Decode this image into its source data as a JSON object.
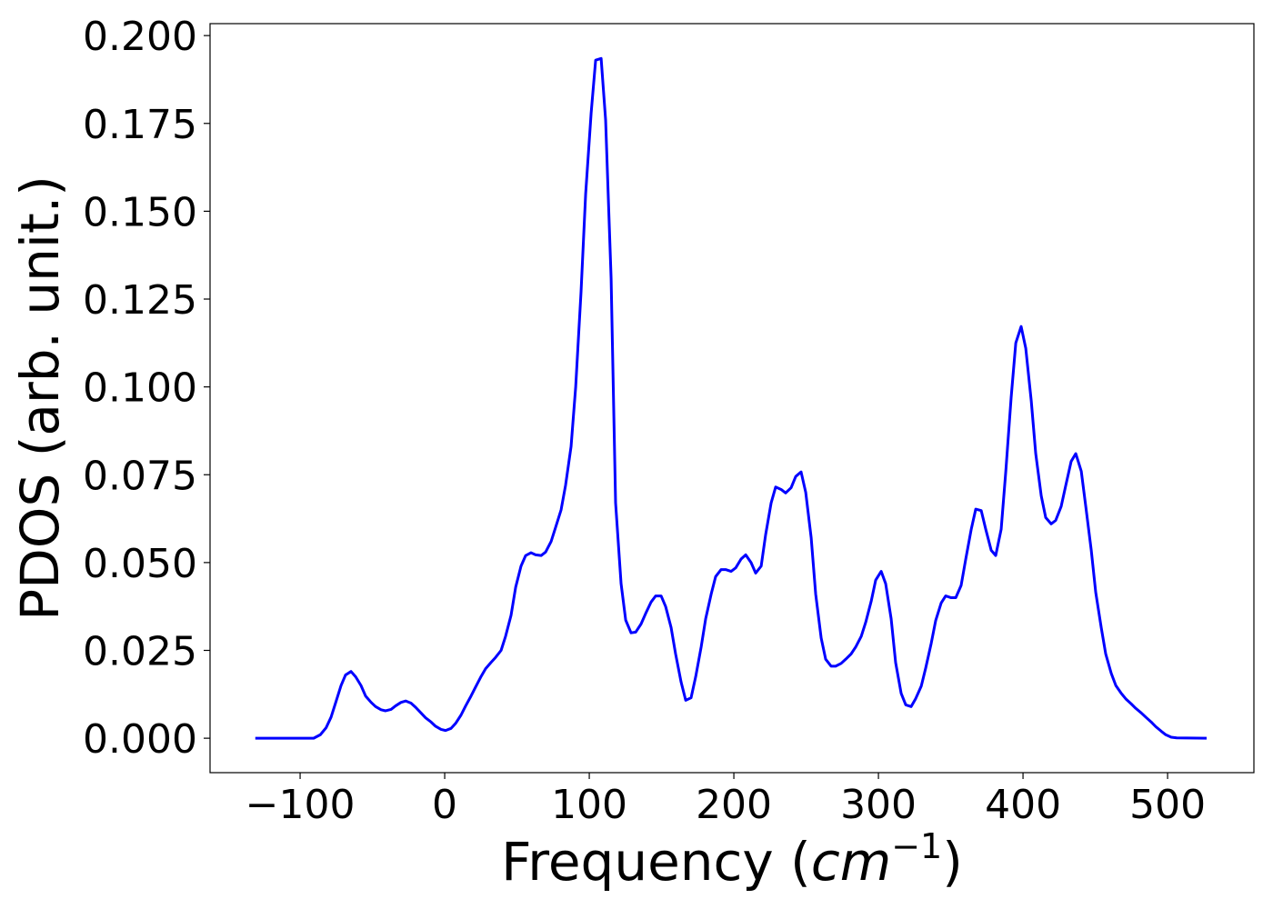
{
  "chart_data": {
    "type": "line",
    "xlabel": [
      "Frequency (",
      "cm",
      "−1",
      ")"
    ],
    "ylabel": "PDOS (arb. unit.)",
    "x": [
      -131,
      -90.6,
      -86,
      -82,
      -78.6,
      -75.5,
      -71.7,
      -68.6,
      -64.8,
      -61.6,
      -57.9,
      -54.7,
      -50.9,
      -47.8,
      -44,
      -40.9,
      -37.1,
      -34,
      -30.2,
      -27,
      -23.3,
      -20.1,
      -16.4,
      -13.2,
      -9.4,
      -6.3,
      -2.5,
      0.6,
      4.4,
      7.5,
      11.3,
      14.5,
      18.2,
      21.4,
      25.2,
      28.3,
      32.1,
      35.2,
      39,
      42.1,
      45.9,
      49.1,
      52.8,
      56,
      59.7,
      62.9,
      66.7,
      69.8,
      73.6,
      76.7,
      80.5,
      83.6,
      87.4,
      90.6,
      94.3,
      97.5,
      101.3,
      104.4,
      108.2,
      111.3,
      115.1,
      118.2,
      122,
      125.2,
      128.9,
      132.1,
      135.8,
      139,
      142.8,
      145.9,
      149.7,
      152.8,
      156.6,
      159.7,
      163.5,
      166.7,
      170.4,
      173.6,
      177.4,
      180.5,
      184.3,
      187.4,
      191.2,
      194.3,
      198.1,
      201.3,
      205,
      208.2,
      211.9,
      215.1,
      218.9,
      222,
      225.8,
      228.9,
      232.7,
      235.8,
      239.6,
      242.8,
      246.5,
      249.7,
      253.5,
      256.6,
      260.4,
      263.5,
      267.3,
      270.4,
      274.2,
      277.4,
      281.1,
      284.3,
      288.1,
      291.2,
      295,
      298.1,
      301.9,
      305,
      308.8,
      311.9,
      315.7,
      318.9,
      322.6,
      325.8,
      329.6,
      332.7,
      336.5,
      339.6,
      343.4,
      346.5,
      350.3,
      353.5,
      357.2,
      360.4,
      364.2,
      367.3,
      371.1,
      374.2,
      378,
      381.1,
      384.9,
      388.1,
      391.8,
      395,
      398.7,
      401.9,
      405.7,
      408.8,
      412.6,
      415.7,
      419.5,
      422.6,
      426.4,
      429.6,
      433.3,
      436.5,
      440.3,
      443.4,
      447.2,
      450.3,
      454.1,
      457.2,
      461,
      464.2,
      467.9,
      471.1,
      474.8,
      478,
      481.8,
      484.9,
      488.7,
      491.8,
      495.6,
      498.7,
      502.5,
      506.3,
      527
    ],
    "series": [
      {
        "name": "PDOS",
        "color": "#0000ff",
        "values": [
          0,
          0,
          0.001,
          0.003,
          0.006,
          0.01,
          0.015,
          0.018,
          0.019,
          0.0175,
          0.015,
          0.012,
          0.0102,
          0.009,
          0.0081,
          0.0078,
          0.0082,
          0.0092,
          0.0102,
          0.0106,
          0.01,
          0.0088,
          0.0072,
          0.0058,
          0.0046,
          0.0034,
          0.0025,
          0.0022,
          0.0028,
          0.0042,
          0.0066,
          0.0092,
          0.012,
          0.0146,
          0.0176,
          0.0198,
          0.0216,
          0.023,
          0.025,
          0.029,
          0.035,
          0.043,
          0.049,
          0.052,
          0.0528,
          0.0522,
          0.052,
          0.053,
          0.056,
          0.06,
          0.065,
          0.072,
          0.083,
          0.1,
          0.127,
          0.155,
          0.178,
          0.193,
          0.1935,
          0.176,
          0.131,
          0.067,
          0.044,
          0.0336,
          0.03,
          0.0302,
          0.0325,
          0.0355,
          0.0388,
          0.0405,
          0.0405,
          0.0375,
          0.0315,
          0.024,
          0.016,
          0.0108,
          0.0115,
          0.0175,
          0.026,
          0.034,
          0.041,
          0.046,
          0.048,
          0.048,
          0.0475,
          0.0485,
          0.051,
          0.0522,
          0.05,
          0.047,
          0.049,
          0.058,
          0.067,
          0.0715,
          0.0708,
          0.0698,
          0.0713,
          0.0745,
          0.0758,
          0.07,
          0.057,
          0.041,
          0.0285,
          0.0225,
          0.0205,
          0.0205,
          0.0213,
          0.0225,
          0.024,
          0.026,
          0.029,
          0.033,
          0.039,
          0.045,
          0.0475,
          0.044,
          0.034,
          0.0215,
          0.0128,
          0.0095,
          0.009,
          0.0113,
          0.0148,
          0.02,
          0.027,
          0.0335,
          0.0385,
          0.0405,
          0.04,
          0.04,
          0.0435,
          0.051,
          0.0595,
          0.0652,
          0.0648,
          0.0595,
          0.0535,
          0.052,
          0.0595,
          0.076,
          0.097,
          0.1125,
          0.1172,
          0.111,
          0.096,
          0.081,
          0.069,
          0.0628,
          0.061,
          0.062,
          0.066,
          0.072,
          0.0788,
          0.081,
          0.076,
          0.066,
          0.0535,
          0.0415,
          0.0315,
          0.024,
          0.0185,
          0.015,
          0.0128,
          0.0112,
          0.0098,
          0.0085,
          0.0072,
          0.006,
          0.0046,
          0.0033,
          0.002,
          0.001,
          0.0003,
          0.0001,
          0
        ]
      }
    ],
    "xlim": [
      -162.3,
      559.7
    ],
    "ylim": [
      -0.0098,
      0.2034
    ],
    "xticks": [
      {
        "value": -100,
        "label": "−100"
      },
      0,
      100,
      200,
      300,
      400,
      500
    ],
    "yticks": [
      {
        "value": 0,
        "label": "0.000"
      },
      {
        "value": 0.025,
        "label": "0.025"
      },
      {
        "value": 0.05,
        "label": "0.050"
      },
      {
        "value": 0.075,
        "label": "0.075"
      },
      {
        "value": 0.1,
        "label": "0.100"
      },
      {
        "value": 0.125,
        "label": "0.125"
      },
      {
        "value": 0.15,
        "label": "0.150"
      },
      {
        "value": 0.175,
        "label": "0.175"
      },
      {
        "value": 0.2,
        "label": "0.200"
      }
    ],
    "grid": false
  }
}
